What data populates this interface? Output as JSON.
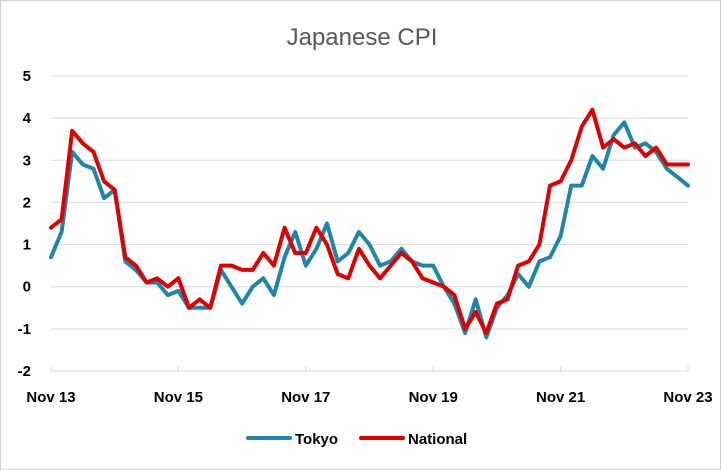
{
  "chart_data": {
    "type": "line",
    "title": "Japanese CPI",
    "xlabel": "",
    "ylabel": "",
    "ylim": [
      -2,
      5
    ],
    "y_ticks": [
      "5",
      "4",
      "3",
      "2",
      "1",
      "0",
      "-1",
      "-2"
    ],
    "x_ticks": [
      "Nov 13",
      "Nov 15",
      "Nov 17",
      "Nov 19",
      "Nov 21",
      "Nov 23"
    ],
    "x_range": [
      "2013-11",
      "2023-11"
    ],
    "grid": "horizontal",
    "legend_position": "bottom",
    "series": [
      {
        "name": "Tokyo",
        "color": "#1f86ab",
        "x": [
          "2013-11",
          "2014-01",
          "2014-03",
          "2014-05",
          "2014-07",
          "2014-09",
          "2014-11",
          "2015-01",
          "2015-03",
          "2015-05",
          "2015-07",
          "2015-09",
          "2015-11",
          "2016-01",
          "2016-03",
          "2016-05",
          "2016-07",
          "2016-09",
          "2016-11",
          "2017-01",
          "2017-03",
          "2017-05",
          "2017-07",
          "2017-09",
          "2017-11",
          "2018-01",
          "2018-03",
          "2018-05",
          "2018-07",
          "2018-09",
          "2018-11",
          "2019-01",
          "2019-03",
          "2019-05",
          "2019-07",
          "2019-09",
          "2019-11",
          "2020-01",
          "2020-03",
          "2020-05",
          "2020-07",
          "2020-09",
          "2020-11",
          "2021-01",
          "2021-03",
          "2021-05",
          "2021-07",
          "2021-09",
          "2021-11",
          "2022-01",
          "2022-03",
          "2022-05",
          "2022-07",
          "2022-09",
          "2022-11",
          "2023-01",
          "2023-03",
          "2023-05",
          "2023-07",
          "2023-09",
          "2023-11"
        ],
        "values": [
          0.7,
          1.3,
          3.2,
          2.9,
          2.8,
          2.1,
          2.3,
          0.6,
          0.4,
          0.1,
          0.1,
          -0.2,
          -0.1,
          -0.5,
          -0.5,
          -0.5,
          0.4,
          0.0,
          -0.4,
          0.0,
          0.2,
          -0.2,
          0.7,
          1.3,
          0.5,
          0.9,
          1.5,
          0.6,
          0.8,
          1.3,
          1.0,
          0.5,
          0.6,
          0.9,
          0.6,
          0.5,
          0.5,
          0.0,
          -0.4,
          -1.1,
          -0.3,
          -1.2,
          -0.5,
          -0.2,
          0.3,
          0.0,
          0.6,
          0.7,
          1.2,
          2.4,
          2.4,
          3.1,
          2.8,
          3.6,
          3.9,
          3.3,
          3.4,
          3.2,
          2.8,
          2.6,
          2.4
        ]
      },
      {
        "name": "National",
        "color": "#e00000",
        "x": [
          "2013-11",
          "2014-01",
          "2014-03",
          "2014-05",
          "2014-07",
          "2014-09",
          "2014-11",
          "2015-01",
          "2015-03",
          "2015-05",
          "2015-07",
          "2015-09",
          "2015-11",
          "2016-01",
          "2016-03",
          "2016-05",
          "2016-07",
          "2016-09",
          "2016-11",
          "2017-01",
          "2017-03",
          "2017-05",
          "2017-07",
          "2017-09",
          "2017-11",
          "2018-01",
          "2018-03",
          "2018-05",
          "2018-07",
          "2018-09",
          "2018-11",
          "2019-01",
          "2019-03",
          "2019-05",
          "2019-07",
          "2019-09",
          "2019-11",
          "2020-01",
          "2020-03",
          "2020-05",
          "2020-07",
          "2020-09",
          "2020-11",
          "2021-01",
          "2021-03",
          "2021-05",
          "2021-07",
          "2021-09",
          "2021-11",
          "2022-01",
          "2022-03",
          "2022-05",
          "2022-07",
          "2022-09",
          "2022-11",
          "2023-01",
          "2023-03",
          "2023-05",
          "2023-07",
          "2023-09",
          "2023-11"
        ],
        "values": [
          1.4,
          1.6,
          3.7,
          3.4,
          3.2,
          2.5,
          2.3,
          0.7,
          0.5,
          0.1,
          0.2,
          0.0,
          0.2,
          -0.5,
          -0.3,
          -0.5,
          0.5,
          0.5,
          0.4,
          0.4,
          0.8,
          0.5,
          1.4,
          0.8,
          0.8,
          1.4,
          1.0,
          0.3,
          0.2,
          0.9,
          0.5,
          0.2,
          0.5,
          0.8,
          0.6,
          0.2,
          0.1,
          0.0,
          -0.2,
          -1.0,
          -0.6,
          -1.1,
          -0.4,
          -0.3,
          0.5,
          0.6,
          1.0,
          2.4,
          2.5,
          3.0,
          3.8,
          4.2,
          3.3,
          3.5,
          3.3,
          3.4,
          3.1,
          3.3,
          2.9,
          2.9,
          2.9
        ]
      }
    ]
  }
}
